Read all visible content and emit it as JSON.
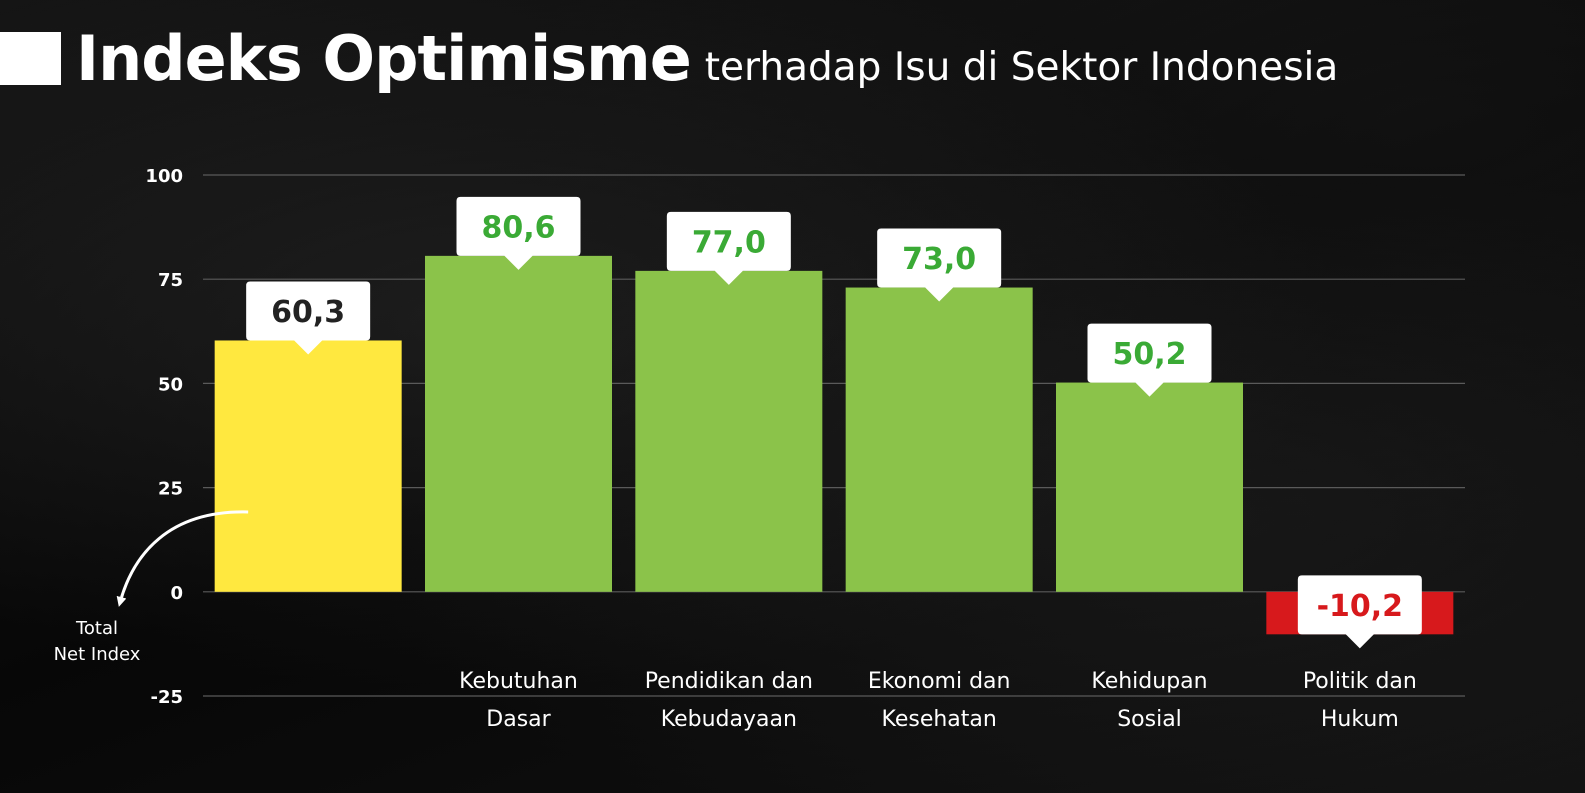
{
  "title": {
    "main": "Indeks Optimisme",
    "sub": "terhadap Isu di Sektor Indonesia"
  },
  "chart_data": {
    "type": "bar",
    "title": "Indeks Optimisme terhadap Isu di Sektor Indonesia",
    "categories": [
      [],
      [
        "Kebutuhan",
        "Dasar"
      ],
      [
        "Pendidikan dan",
        "Kebudayaan"
      ],
      [
        "Ekonomi dan",
        "Kesehatan"
      ],
      [
        "Kehidupan",
        "Sosial"
      ],
      [
        "Politik dan",
        "Hukum"
      ]
    ],
    "values": [
      60.3,
      80.6,
      77.0,
      73.0,
      50.2,
      -10.2
    ],
    "value_labels": [
      "60,3",
      "80,6",
      "77,0",
      "73,0",
      "50,2",
      "-10,2"
    ],
    "bar_colors": [
      "#FFE83F",
      "#8BC34A",
      "#8BC34A",
      "#8BC34A",
      "#8BC34A",
      "#D7191C"
    ],
    "label_colors": [
      "#222222",
      "#3AAA35",
      "#3AAA35",
      "#3AAA35",
      "#3AAA35",
      "#D7191C"
    ],
    "ylim": [
      -25,
      100
    ],
    "yticks": [
      100,
      75,
      50,
      25,
      0,
      -25
    ],
    "grid": true,
    "annotation": {
      "text": [
        "Total",
        "Net Index"
      ]
    }
  }
}
